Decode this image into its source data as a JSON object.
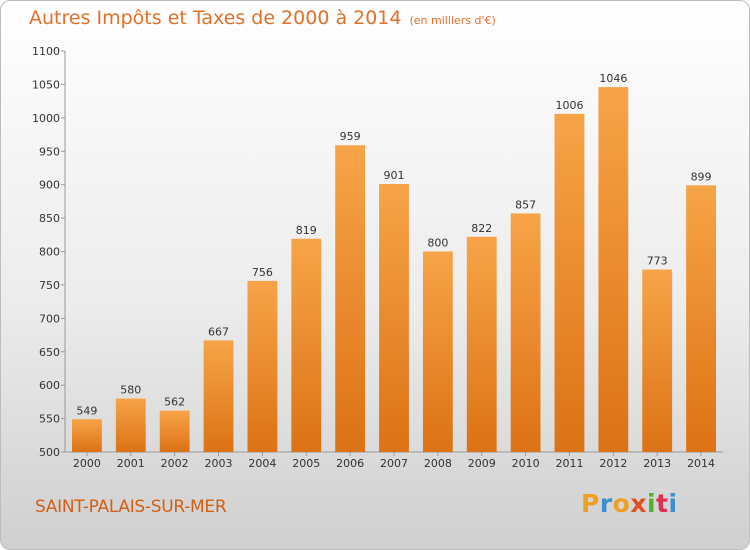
{
  "chart_data": {
    "type": "bar",
    "title": "Autres Impôts et Taxes de 2000 à 2014",
    "subtitle": "(en milliers d'€)",
    "categories": [
      "2000",
      "2001",
      "2002",
      "2003",
      "2004",
      "2005",
      "2006",
      "2007",
      "2008",
      "2009",
      "2010",
      "2011",
      "2012",
      "2013",
      "2014"
    ],
    "values": [
      549,
      580,
      562,
      667,
      756,
      819,
      959,
      901,
      800,
      822,
      857,
      1006,
      1046,
      773,
      899
    ],
    "ylim": [
      500,
      1100
    ],
    "yticks": [
      500,
      550,
      600,
      650,
      700,
      750,
      800,
      850,
      900,
      950,
      1000,
      1050,
      1100
    ],
    "grid": false,
    "bar_color": "#f0922e"
  },
  "footer": {
    "place": "SAINT-PALAIS-SUR-MER",
    "logo_letters": [
      "P",
      "r",
      "o",
      "x",
      "i",
      "t",
      "i"
    ],
    "logo_colors": [
      "#f0a020",
      "#3a8fd0",
      "#f0a020",
      "#e05020",
      "#55b030",
      "#e03050",
      "#3a8fd0"
    ]
  }
}
